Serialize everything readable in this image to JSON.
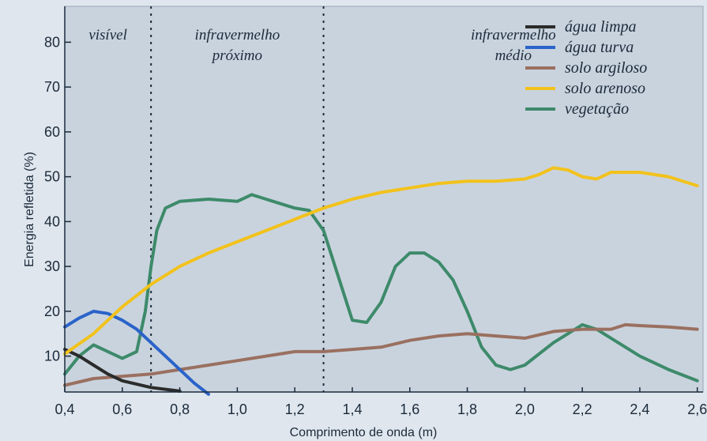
{
  "chart_data": {
    "type": "line",
    "title": "",
    "xlabel": "Comprimento de onda (m)",
    "ylabel": "Energia refletida (%)",
    "xlim": [
      0.4,
      2.62
    ],
    "ylim": [
      2,
      88
    ],
    "x_ticks": [
      0.4,
      0.6,
      0.8,
      1.0,
      1.2,
      1.4,
      1.6,
      1.8,
      2.0,
      2.2,
      2.4,
      2.6
    ],
    "x_tick_labels": [
      "0,4",
      "0,6",
      "0,8",
      "1,0",
      "1,2",
      "1,4",
      "1,6",
      "1,8",
      "2,0",
      "2,2",
      "2,4",
      "2,6"
    ],
    "y_ticks": [
      10,
      20,
      30,
      40,
      50,
      60,
      70,
      80
    ],
    "y_tick_labels": [
      "10",
      "20",
      "30",
      "40",
      "50",
      "60",
      "70",
      "80"
    ],
    "grid": false,
    "legend_position": "top-right",
    "regions": [
      {
        "lines": [
          "visível"
        ],
        "x_start": 0.4,
        "x_end": 0.7
      },
      {
        "lines": [
          "infravermelho",
          "próximo"
        ],
        "x_start": 0.7,
        "x_end": 1.3
      },
      {
        "lines": [
          "infravermelho",
          "médio"
        ],
        "x_start": 1.3,
        "x_end": 2.62
      }
    ],
    "region_boundaries": [
      0.7,
      1.3
    ],
    "series": [
      {
        "name": "água limpa",
        "color": "#2b2b2b",
        "points": [
          [
            0.4,
            11.5
          ],
          [
            0.45,
            10
          ],
          [
            0.5,
            8
          ],
          [
            0.55,
            6
          ],
          [
            0.6,
            4.5
          ],
          [
            0.7,
            3
          ],
          [
            0.8,
            2.2
          ]
        ]
      },
      {
        "name": "água turva",
        "color": "#2a63c9",
        "points": [
          [
            0.4,
            16.5
          ],
          [
            0.45,
            18.5
          ],
          [
            0.5,
            20
          ],
          [
            0.55,
            19.5
          ],
          [
            0.6,
            18
          ],
          [
            0.65,
            16
          ],
          [
            0.7,
            13
          ],
          [
            0.75,
            10
          ],
          [
            0.8,
            7
          ],
          [
            0.85,
            4
          ],
          [
            0.9,
            1.5
          ]
        ]
      },
      {
        "name": "solo argiloso",
        "color": "#9a7060",
        "points": [
          [
            0.4,
            3.5
          ],
          [
            0.5,
            5
          ],
          [
            0.6,
            5.5
          ],
          [
            0.7,
            6
          ],
          [
            0.8,
            7
          ],
          [
            0.9,
            8
          ],
          [
            1.0,
            9
          ],
          [
            1.1,
            10
          ],
          [
            1.2,
            11
          ],
          [
            1.3,
            11
          ],
          [
            1.4,
            11.5
          ],
          [
            1.5,
            12
          ],
          [
            1.6,
            13.5
          ],
          [
            1.7,
            14.5
          ],
          [
            1.8,
            15
          ],
          [
            1.9,
            14.5
          ],
          [
            2.0,
            14
          ],
          [
            2.1,
            15.5
          ],
          [
            2.2,
            16
          ],
          [
            2.3,
            16
          ],
          [
            2.35,
            17
          ],
          [
            2.4,
            16.8
          ],
          [
            2.5,
            16.5
          ],
          [
            2.6,
            16
          ]
        ]
      },
      {
        "name": "solo arenoso",
        "color": "#f2c21c",
        "points": [
          [
            0.4,
            10.5
          ],
          [
            0.5,
            15
          ],
          [
            0.6,
            21
          ],
          [
            0.7,
            26
          ],
          [
            0.8,
            30
          ],
          [
            0.9,
            33
          ],
          [
            1.0,
            35.5
          ],
          [
            1.1,
            38
          ],
          [
            1.2,
            40.5
          ],
          [
            1.3,
            43
          ],
          [
            1.4,
            45
          ],
          [
            1.5,
            46.5
          ],
          [
            1.6,
            47.5
          ],
          [
            1.7,
            48.5
          ],
          [
            1.8,
            49
          ],
          [
            1.9,
            49
          ],
          [
            2.0,
            49.5
          ],
          [
            2.05,
            50.5
          ],
          [
            2.1,
            52
          ],
          [
            2.15,
            51.5
          ],
          [
            2.2,
            50
          ],
          [
            2.25,
            49.5
          ],
          [
            2.3,
            51
          ],
          [
            2.4,
            51
          ],
          [
            2.5,
            50
          ],
          [
            2.6,
            48
          ]
        ]
      },
      {
        "name": "vegetação",
        "color": "#3d8a6a",
        "points": [
          [
            0.4,
            6
          ],
          [
            0.45,
            10
          ],
          [
            0.5,
            12.5
          ],
          [
            0.55,
            11
          ],
          [
            0.6,
            9.5
          ],
          [
            0.65,
            11
          ],
          [
            0.68,
            20
          ],
          [
            0.7,
            30
          ],
          [
            0.72,
            38
          ],
          [
            0.75,
            43
          ],
          [
            0.8,
            44.5
          ],
          [
            0.9,
            45
          ],
          [
            1.0,
            44.5
          ],
          [
            1.05,
            46
          ],
          [
            1.1,
            45
          ],
          [
            1.2,
            43
          ],
          [
            1.25,
            42.5
          ],
          [
            1.3,
            38
          ],
          [
            1.35,
            28
          ],
          [
            1.4,
            18
          ],
          [
            1.45,
            17.5
          ],
          [
            1.5,
            22
          ],
          [
            1.55,
            30
          ],
          [
            1.6,
            33
          ],
          [
            1.65,
            33
          ],
          [
            1.7,
            31
          ],
          [
            1.75,
            27
          ],
          [
            1.8,
            20
          ],
          [
            1.85,
            12
          ],
          [
            1.9,
            8
          ],
          [
            1.95,
            7
          ],
          [
            2.0,
            8
          ],
          [
            2.1,
            13
          ],
          [
            2.2,
            17
          ],
          [
            2.25,
            16
          ],
          [
            2.3,
            14
          ],
          [
            2.4,
            10
          ],
          [
            2.5,
            7
          ],
          [
            2.6,
            4.5
          ]
        ]
      }
    ]
  }
}
